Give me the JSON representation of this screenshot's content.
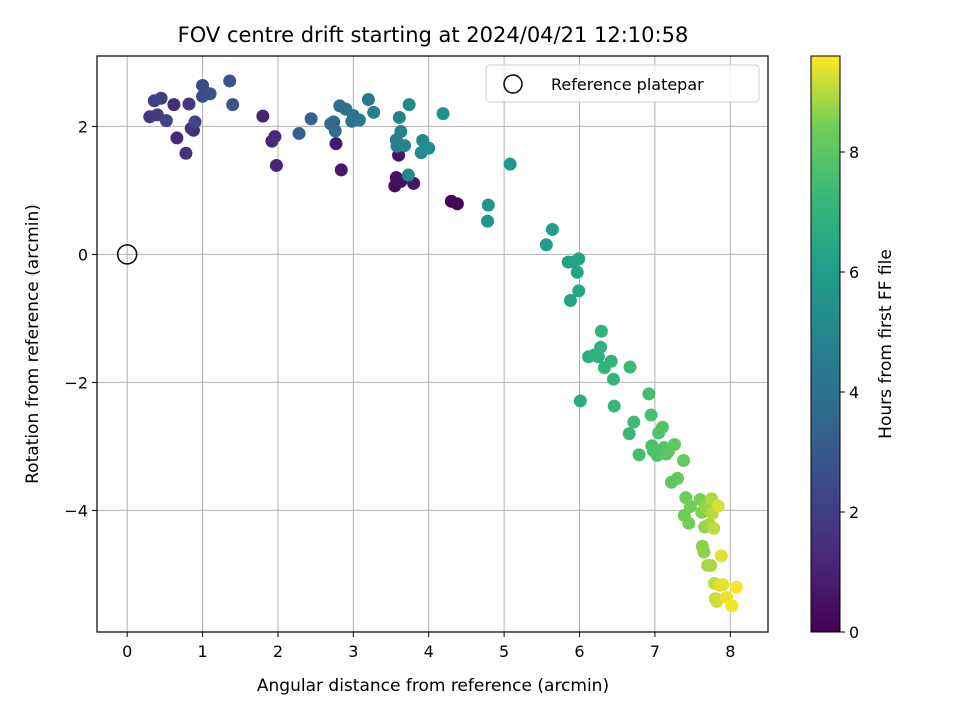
{
  "chart_data": {
    "type": "scatter",
    "title": "FOV centre drift starting at 2024/04/21 12:10:58",
    "xlabel": "Angular distance from reference (arcmin)",
    "ylabel": "Rotation from reference (arcmin)",
    "xlim": [
      -0.4,
      8.5
    ],
    "ylim": [
      -5.9,
      3.1
    ],
    "xticks": [
      0,
      1,
      2,
      3,
      4,
      5,
      6,
      7,
      8
    ],
    "xtick_labels": [
      "0",
      "1",
      "2",
      "3",
      "4",
      "5",
      "6",
      "7",
      "8"
    ],
    "yticks": [
      2,
      0,
      -2,
      -4
    ],
    "ytick_labels": [
      "2",
      "0",
      "−2",
      "−4"
    ],
    "grid": true,
    "legend": {
      "position": "top-right",
      "entries": [
        {
          "label": "Reference platepar",
          "marker": "open-circle"
        }
      ]
    },
    "reference_point": {
      "x": 0,
      "y": 0
    },
    "colorbar": {
      "label": "Hours from first FF file",
      "colormap": "viridis",
      "range": [
        0,
        9.6
      ],
      "ticks": [
        0,
        2,
        4,
        6,
        8
      ],
      "tick_labels": [
        "0",
        "2",
        "4",
        "6",
        "8"
      ]
    },
    "points": [
      [
        4.3,
        0.83,
        0.1
      ],
      [
        4.38,
        0.79,
        0.15
      ],
      [
        3.55,
        1.07,
        0.4
      ],
      [
        3.57,
        1.2,
        0.45
      ],
      [
        3.63,
        1.14,
        0.5
      ],
      [
        3.8,
        1.11,
        0.55
      ],
      [
        3.6,
        1.55,
        0.6
      ],
      [
        2.77,
        1.73,
        0.7
      ],
      [
        2.84,
        1.32,
        0.75
      ],
      [
        1.8,
        2.16,
        1.0
      ],
      [
        1.98,
        1.39,
        1.1
      ],
      [
        1.92,
        1.77,
        1.15
      ],
      [
        1.96,
        1.84,
        1.2
      ],
      [
        0.66,
        1.82,
        1.3
      ],
      [
        0.62,
        2.34,
        1.4
      ],
      [
        0.88,
        1.94,
        1.5
      ],
      [
        0.85,
        1.97,
        1.55
      ],
      [
        0.78,
        1.58,
        1.6
      ],
      [
        0.82,
        2.35,
        1.7
      ],
      [
        0.3,
        2.15,
        1.8
      ],
      [
        0.4,
        2.18,
        1.9
      ],
      [
        0.45,
        2.44,
        2.0
      ],
      [
        0.36,
        2.4,
        2.1
      ],
      [
        0.52,
        2.09,
        2.2
      ],
      [
        0.9,
        2.07,
        2.3
      ],
      [
        1.0,
        2.64,
        2.4
      ],
      [
        1.0,
        2.47,
        2.5
      ],
      [
        1.1,
        2.51,
        2.7
      ],
      [
        1.36,
        2.71,
        2.8
      ],
      [
        1.4,
        2.34,
        2.9
      ],
      [
        2.28,
        1.89,
        3.2
      ],
      [
        2.44,
        2.12,
        3.4
      ],
      [
        2.7,
        2.04,
        3.6
      ],
      [
        2.74,
        2.07,
        3.7
      ],
      [
        2.76,
        1.93,
        3.8
      ],
      [
        2.82,
        2.32,
        3.9
      ],
      [
        2.9,
        2.27,
        4.0
      ],
      [
        2.98,
        2.08,
        4.1
      ],
      [
        3.0,
        2.17,
        4.2
      ],
      [
        3.08,
        2.1,
        4.3
      ],
      [
        3.2,
        2.42,
        4.4
      ],
      [
        3.27,
        2.22,
        4.5
      ],
      [
        3.57,
        1.79,
        4.6
      ],
      [
        3.58,
        1.69,
        4.7
      ],
      [
        3.61,
        2.14,
        4.75
      ],
      [
        3.63,
        1.92,
        4.8
      ],
      [
        3.68,
        1.7,
        4.9
      ],
      [
        3.73,
        1.24,
        5.0
      ],
      [
        3.74,
        2.34,
        5.05
      ],
      [
        3.9,
        1.59,
        5.1
      ],
      [
        3.92,
        1.78,
        5.2
      ],
      [
        4.0,
        1.66,
        5.3
      ],
      [
        4.19,
        2.2,
        5.4
      ],
      [
        4.79,
        0.77,
        5.6
      ],
      [
        4.78,
        0.52,
        5.7
      ],
      [
        5.08,
        1.41,
        5.8
      ],
      [
        5.56,
        0.15,
        6.0
      ],
      [
        5.64,
        0.39,
        6.1
      ],
      [
        5.85,
        -0.12,
        6.2
      ],
      [
        5.92,
        -0.12,
        6.25
      ],
      [
        5.97,
        -0.28,
        6.3
      ],
      [
        5.99,
        -0.07,
        6.35
      ],
      [
        5.88,
        -0.72,
        6.4
      ],
      [
        5.99,
        -0.57,
        6.5
      ],
      [
        6.01,
        -2.29,
        6.6
      ],
      [
        6.12,
        -1.6,
        6.7
      ],
      [
        6.2,
        -1.57,
        6.8
      ],
      [
        6.25,
        -1.6,
        6.85
      ],
      [
        6.28,
        -1.45,
        6.9
      ],
      [
        6.29,
        -1.2,
        7.0
      ],
      [
        6.33,
        -1.77,
        7.05
      ],
      [
        6.42,
        -1.67,
        7.1
      ],
      [
        6.45,
        -1.95,
        7.15
      ],
      [
        6.46,
        -2.37,
        7.2
      ],
      [
        6.66,
        -2.8,
        7.3
      ],
      [
        6.67,
        -1.76,
        7.35
      ],
      [
        6.72,
        -2.62,
        7.4
      ],
      [
        6.79,
        -3.13,
        7.5
      ],
      [
        6.92,
        -2.18,
        7.55
      ],
      [
        6.95,
        -2.51,
        7.6
      ],
      [
        6.96,
        -2.99,
        7.65
      ],
      [
        6.98,
        -3.07,
        7.7
      ],
      [
        7.03,
        -3.14,
        7.75
      ],
      [
        7.05,
        -2.79,
        7.8
      ],
      [
        7.1,
        -2.7,
        7.85
      ],
      [
        7.12,
        -3.02,
        7.9
      ],
      [
        7.15,
        -3.12,
        7.95
      ],
      [
        7.18,
        -3.08,
        8.0
      ],
      [
        7.22,
        -3.56,
        8.05
      ],
      [
        7.26,
        -2.97,
        8.1
      ],
      [
        7.3,
        -3.5,
        8.15
      ],
      [
        7.38,
        -3.22,
        8.2
      ],
      [
        7.39,
        -4.08,
        8.3
      ],
      [
        7.41,
        -3.8,
        8.35
      ],
      [
        7.45,
        -4.2,
        8.4
      ],
      [
        7.47,
        -3.94,
        8.45
      ],
      [
        7.6,
        -3.83,
        8.5
      ],
      [
        7.62,
        -4.03,
        8.55
      ],
      [
        7.63,
        -4.56,
        8.6
      ],
      [
        7.65,
        -4.65,
        8.65
      ],
      [
        7.66,
        -4.26,
        8.7
      ],
      [
        7.68,
        -3.96,
        8.75
      ],
      [
        7.7,
        -4.86,
        8.8
      ],
      [
        7.72,
        -4.22,
        8.85
      ],
      [
        7.74,
        -4.86,
        8.9
      ],
      [
        7.75,
        -3.82,
        8.95
      ],
      [
        7.76,
        -4.05,
        9.0
      ],
      [
        7.78,
        -4.28,
        9.05
      ],
      [
        7.79,
        -5.14,
        9.1
      ],
      [
        7.8,
        -5.38,
        9.15
      ],
      [
        7.82,
        -5.42,
        9.2
      ],
      [
        7.84,
        -3.93,
        9.25
      ],
      [
        7.86,
        -5.17,
        9.3
      ],
      [
        7.88,
        -4.71,
        9.35
      ],
      [
        7.9,
        -5.16,
        9.4
      ],
      [
        7.95,
        -5.36,
        9.45
      ],
      [
        8.02,
        -5.49,
        9.5
      ],
      [
        8.08,
        -5.2,
        9.55
      ]
    ]
  }
}
